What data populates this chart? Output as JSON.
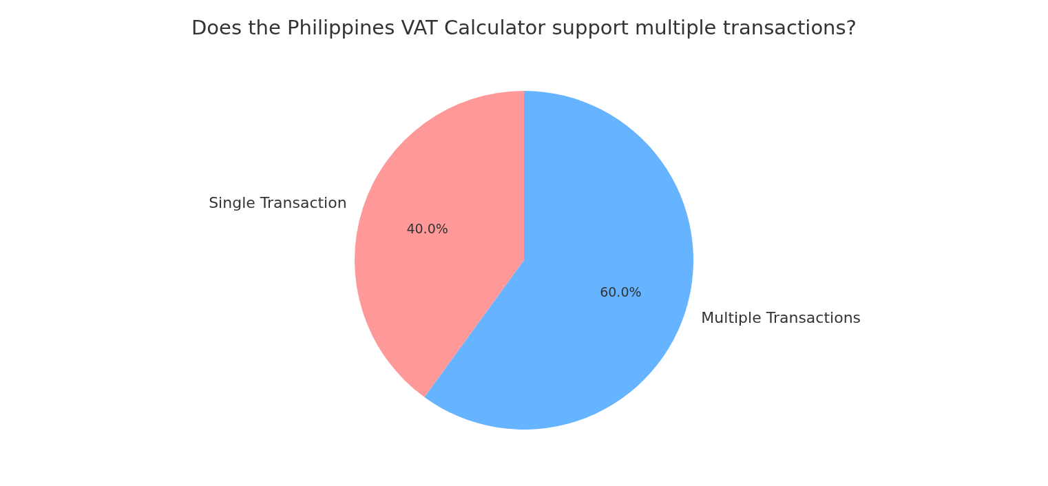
{
  "chart_data": {
    "type": "pie",
    "title": "Does the Philippines VAT Calculator support multiple transactions?",
    "categories": [
      "Single Transaction",
      "Multiple Transactions"
    ],
    "values": [
      40,
      60
    ],
    "colors": [
      "#ff9999",
      "#66b3ff"
    ],
    "value_labels": [
      "40.0%",
      "60.0%"
    ]
  }
}
